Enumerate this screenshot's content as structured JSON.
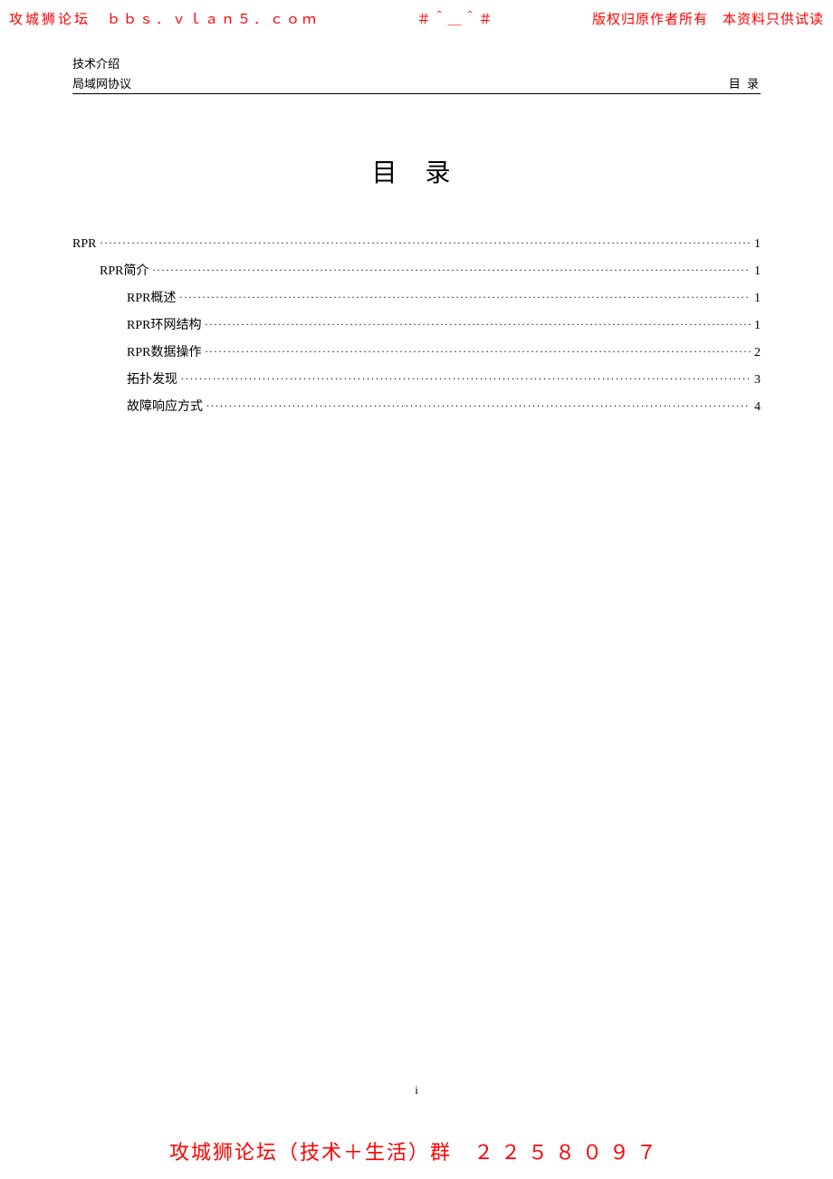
{
  "watermark": {
    "top_left": "攻城狮论坛　ｂｂｓ．ｖｌａｎ５．ｃｏｍ",
    "top_center": "＃＾＿＾＃",
    "top_right": "版权归原作者所有　本资料只供试读",
    "bottom_text": "攻城狮论坛（技术＋生活）群　",
    "bottom_number": "２２５８０９７"
  },
  "header": {
    "line1": "技术介绍",
    "line2": "局域网协议",
    "right": "目 录"
  },
  "title": "目 录",
  "toc": {
    "entries": [
      {
        "level": 1,
        "label": "RPR",
        "page": "1"
      },
      {
        "level": 2,
        "label": "RPR简介",
        "page": "1"
      },
      {
        "level": 3,
        "label": "RPR概述",
        "page": "1"
      },
      {
        "level": 3,
        "label": "RPR环网结构",
        "page": "1"
      },
      {
        "level": 3,
        "label": "RPR数据操作",
        "page": "2"
      },
      {
        "level": 3,
        "label": "拓扑发现",
        "page": "3"
      },
      {
        "level": 3,
        "label": "故障响应方式",
        "page": "4"
      }
    ]
  },
  "page_number": "i",
  "colors": {
    "watermark": "#ff0000",
    "text": "#000000",
    "background": "#ffffff"
  }
}
